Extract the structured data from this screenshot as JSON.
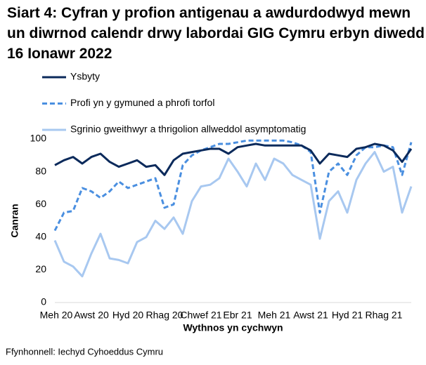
{
  "chart_data": {
    "type": "line",
    "title": "Siart 4: Cyfran y profion antigenau a awdurdodwyd mewn un diwrnod calendr drwy labordai GIG Cymru erbyn diwedd 16 Ionawr 2022",
    "x_label": "Wythnos yn cychwyn",
    "y_label": "Canran",
    "source": "Ffynhonnell: Iechyd Cyhoeddus Cymru",
    "categories": [
      "Meh 20",
      null,
      null,
      null,
      "Awst 20",
      null,
      null,
      null,
      "Hyd 20",
      null,
      null,
      null,
      "Rhag 20",
      null,
      null,
      null,
      "Chwef 21",
      null,
      null,
      null,
      "Ebr 21",
      null,
      null,
      null,
      "Meh 21",
      null,
      null,
      null,
      "Awst 21",
      null,
      null,
      null,
      "Hyd 21",
      null,
      null,
      null,
      "Rhag 21",
      null,
      null,
      null
    ],
    "ylim": [
      0,
      100
    ],
    "yticks": [
      0,
      20,
      40,
      60,
      80,
      100
    ],
    "grid": false,
    "series": [
      {
        "name": "Ysbyty",
        "color": "#0b2a5b",
        "dash": false,
        "values": [
          84,
          87,
          89,
          85,
          89,
          91,
          86,
          83,
          85,
          87,
          83,
          84,
          78,
          87,
          91,
          92,
          93,
          94,
          94,
          91,
          95,
          96,
          97,
          96,
          96,
          96,
          96,
          96,
          93,
          85,
          91,
          90,
          89,
          94,
          95,
          97,
          96,
          93,
          86,
          94
        ]
      },
      {
        "name": "Profi yn y gymuned a phrofi torfol",
        "color": "#4a8fe0",
        "dash": true,
        "values": [
          44,
          55,
          56,
          70,
          68,
          64,
          68,
          74,
          70,
          72,
          74,
          76,
          58,
          60,
          84,
          90,
          93,
          95,
          97,
          97,
          98,
          99,
          99,
          99,
          99,
          99,
          98,
          96,
          92,
          55,
          80,
          85,
          78,
          90,
          95,
          95,
          96,
          95,
          78,
          98
        ]
      },
      {
        "name": "Sgrinio gweithwyr a thrigolion allweddol asymptomatig",
        "color": "#a8c8f0",
        "dash": false,
        "values": [
          38,
          25,
          22,
          16,
          30,
          42,
          27,
          26,
          24,
          37,
          40,
          50,
          45,
          52,
          42,
          62,
          71,
          72,
          76,
          88,
          80,
          71,
          85,
          75,
          88,
          85,
          78,
          75,
          72,
          39,
          62,
          68,
          55,
          75,
          85,
          92,
          80,
          83,
          55,
          71
        ]
      }
    ]
  }
}
